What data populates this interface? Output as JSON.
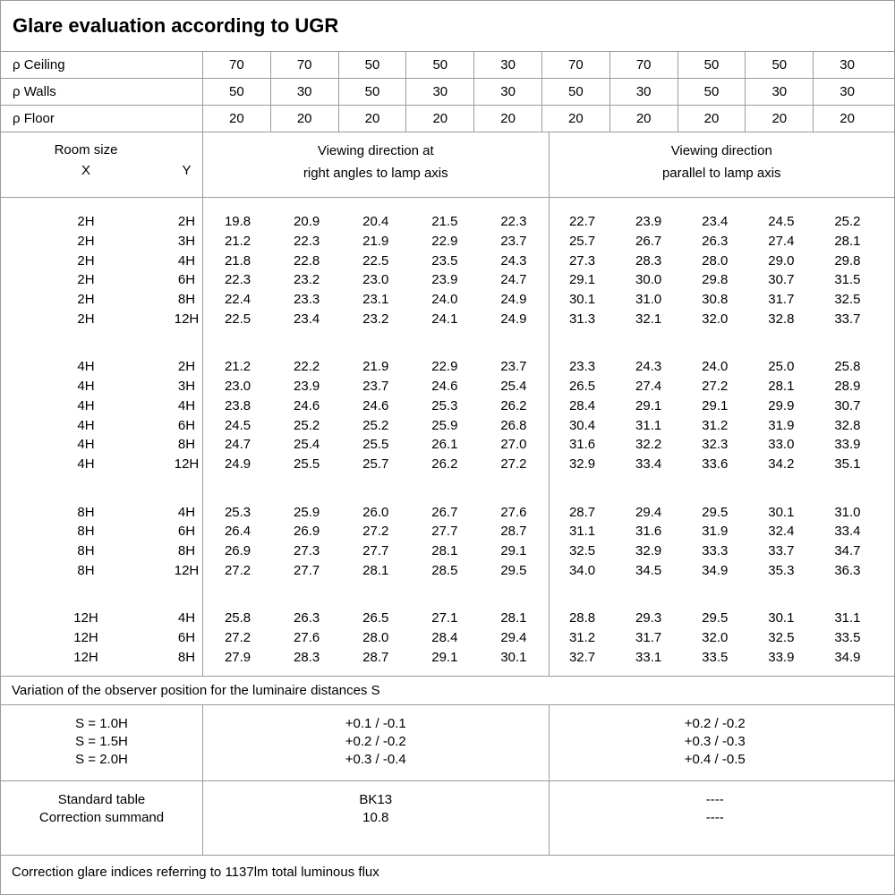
{
  "title": "Glare evaluation according to UGR",
  "reflectance_rows": [
    {
      "label": "ρ Ceiling",
      "values": [
        "70",
        "70",
        "50",
        "50",
        "30",
        "70",
        "70",
        "50",
        "50",
        "30"
      ]
    },
    {
      "label": "ρ Walls",
      "values": [
        "50",
        "30",
        "50",
        "30",
        "30",
        "50",
        "30",
        "50",
        "30",
        "30"
      ]
    },
    {
      "label": "ρ Floor",
      "values": [
        "20",
        "20",
        "20",
        "20",
        "20",
        "20",
        "20",
        "20",
        "20",
        "20"
      ]
    }
  ],
  "room_header": {
    "label": "Room size",
    "x": "X",
    "y": "Y",
    "right_angles_line1": "Viewing direction at",
    "right_angles_line2": "right angles to lamp axis",
    "parallel_line1": "Viewing direction",
    "parallel_line2": "parallel to lamp axis"
  },
  "groups": [
    {
      "rows": [
        {
          "x": "2H",
          "y": "2H",
          "right_angles": [
            "19.8",
            "20.9",
            "20.4",
            "21.5",
            "22.3"
          ],
          "parallel": [
            "22.7",
            "23.9",
            "23.4",
            "24.5",
            "25.2"
          ]
        },
        {
          "x": "2H",
          "y": "3H",
          "right_angles": [
            "21.2",
            "22.3",
            "21.9",
            "22.9",
            "23.7"
          ],
          "parallel": [
            "25.7",
            "26.7",
            "26.3",
            "27.4",
            "28.1"
          ]
        },
        {
          "x": "2H",
          "y": "4H",
          "right_angles": [
            "21.8",
            "22.8",
            "22.5",
            "23.5",
            "24.3"
          ],
          "parallel": [
            "27.3",
            "28.3",
            "28.0",
            "29.0",
            "29.8"
          ]
        },
        {
          "x": "2H",
          "y": "6H",
          "right_angles": [
            "22.3",
            "23.2",
            "23.0",
            "23.9",
            "24.7"
          ],
          "parallel": [
            "29.1",
            "30.0",
            "29.8",
            "30.7",
            "31.5"
          ]
        },
        {
          "x": "2H",
          "y": "8H",
          "right_angles": [
            "22.4",
            "23.3",
            "23.1",
            "24.0",
            "24.9"
          ],
          "parallel": [
            "30.1",
            "31.0",
            "30.8",
            "31.7",
            "32.5"
          ]
        },
        {
          "x": "2H",
          "y": "12H",
          "right_angles": [
            "22.5",
            "23.4",
            "23.2",
            "24.1",
            "24.9"
          ],
          "parallel": [
            "31.3",
            "32.1",
            "32.0",
            "32.8",
            "33.7"
          ]
        }
      ]
    },
    {
      "rows": [
        {
          "x": "4H",
          "y": "2H",
          "right_angles": [
            "21.2",
            "22.2",
            "21.9",
            "22.9",
            "23.7"
          ],
          "parallel": [
            "23.3",
            "24.3",
            "24.0",
            "25.0",
            "25.8"
          ]
        },
        {
          "x": "4H",
          "y": "3H",
          "right_angles": [
            "23.0",
            "23.9",
            "23.7",
            "24.6",
            "25.4"
          ],
          "parallel": [
            "26.5",
            "27.4",
            "27.2",
            "28.1",
            "28.9"
          ]
        },
        {
          "x": "4H",
          "y": "4H",
          "right_angles": [
            "23.8",
            "24.6",
            "24.6",
            "25.3",
            "26.2"
          ],
          "parallel": [
            "28.4",
            "29.1",
            "29.1",
            "29.9",
            "30.7"
          ]
        },
        {
          "x": "4H",
          "y": "6H",
          "right_angles": [
            "24.5",
            "25.2",
            "25.2",
            "25.9",
            "26.8"
          ],
          "parallel": [
            "30.4",
            "31.1",
            "31.2",
            "31.9",
            "32.8"
          ]
        },
        {
          "x": "4H",
          "y": "8H",
          "right_angles": [
            "24.7",
            "25.4",
            "25.5",
            "26.1",
            "27.0"
          ],
          "parallel": [
            "31.6",
            "32.2",
            "32.3",
            "33.0",
            "33.9"
          ]
        },
        {
          "x": "4H",
          "y": "12H",
          "right_angles": [
            "24.9",
            "25.5",
            "25.7",
            "26.2",
            "27.2"
          ],
          "parallel": [
            "32.9",
            "33.4",
            "33.6",
            "34.2",
            "35.1"
          ]
        }
      ]
    },
    {
      "rows": [
        {
          "x": "8H",
          "y": "4H",
          "right_angles": [
            "25.3",
            "25.9",
            "26.0",
            "26.7",
            "27.6"
          ],
          "parallel": [
            "28.7",
            "29.4",
            "29.5",
            "30.1",
            "31.0"
          ]
        },
        {
          "x": "8H",
          "y": "6H",
          "right_angles": [
            "26.4",
            "26.9",
            "27.2",
            "27.7",
            "28.7"
          ],
          "parallel": [
            "31.1",
            "31.6",
            "31.9",
            "32.4",
            "33.4"
          ]
        },
        {
          "x": "8H",
          "y": "8H",
          "right_angles": [
            "26.9",
            "27.3",
            "27.7",
            "28.1",
            "29.1"
          ],
          "parallel": [
            "32.5",
            "32.9",
            "33.3",
            "33.7",
            "34.7"
          ]
        },
        {
          "x": "8H",
          "y": "12H",
          "right_angles": [
            "27.2",
            "27.7",
            "28.1",
            "28.5",
            "29.5"
          ],
          "parallel": [
            "34.0",
            "34.5",
            "34.9",
            "35.3",
            "36.3"
          ]
        }
      ]
    },
    {
      "rows": [
        {
          "x": "12H",
          "y": "4H",
          "right_angles": [
            "25.8",
            "26.3",
            "26.5",
            "27.1",
            "28.1"
          ],
          "parallel": [
            "28.8",
            "29.3",
            "29.5",
            "30.1",
            "31.1"
          ]
        },
        {
          "x": "12H",
          "y": "6H",
          "right_angles": [
            "27.2",
            "27.6",
            "28.0",
            "28.4",
            "29.4"
          ],
          "parallel": [
            "31.2",
            "31.7",
            "32.0",
            "32.5",
            "33.5"
          ]
        },
        {
          "x": "12H",
          "y": "8H",
          "right_angles": [
            "27.9",
            "28.3",
            "28.7",
            "29.1",
            "30.1"
          ],
          "parallel": [
            "32.7",
            "33.1",
            "33.5",
            "33.9",
            "34.9"
          ]
        }
      ]
    }
  ],
  "variation_title": "Variation of the observer position for the luminaire distances S",
  "variation_table": {
    "rows": [
      {
        "label": "S = 1.0H",
        "right_angles": "+0.1 / -0.1",
        "parallel": "+0.2 / -0.2"
      },
      {
        "label": "S = 1.5H",
        "right_angles": "+0.2 / -0.2",
        "parallel": "+0.3 / -0.3"
      },
      {
        "label": "S = 2.0H",
        "right_angles": "+0.3 / -0.4",
        "parallel": "+0.4 / -0.5"
      }
    ]
  },
  "summary_table": {
    "rows": [
      {
        "label": "Standard table",
        "right_angles": "BK13",
        "parallel": "----"
      },
      {
        "label": "Correction summand",
        "right_angles": "10.8",
        "parallel": "----"
      }
    ]
  },
  "footer": "Correction glare indices referring to 1137lm total luminous flux"
}
